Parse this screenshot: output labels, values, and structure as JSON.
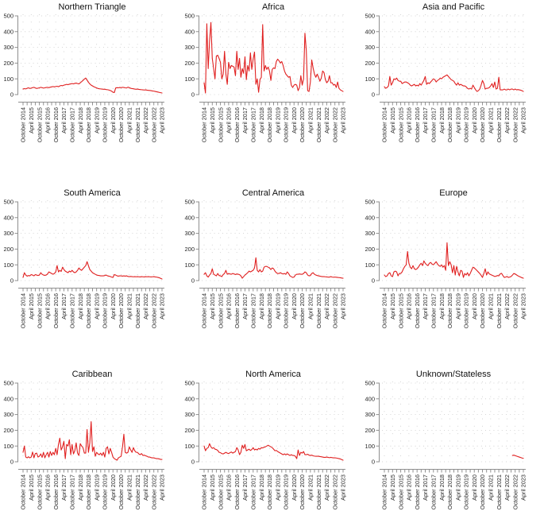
{
  "page": {
    "background": "#ffffff"
  },
  "chart_data": {
    "type": "line",
    "layout": "3x3 small multiples",
    "series_color": "#e02020",
    "axis_color": "#8f8f8f",
    "grid_color": "#c9c9c9",
    "label_color": "#262626",
    "title_color": "#111111",
    "grid": "dotted",
    "legend": "none",
    "x_frequency": "monthly",
    "x_start_label": "October 2014",
    "x_end_label": "April 2023",
    "x_months_total": 103,
    "ylim": [
      0,
      500
    ],
    "y_ticks": [
      0,
      100,
      200,
      300,
      400,
      500
    ],
    "x_tick_labels": [
      "October 2014",
      "April 2015",
      "October 2015",
      "April 2016",
      "October 2016",
      "April 2017",
      "October 2017",
      "April 2018",
      "October 2018",
      "April 2019",
      "October 2019",
      "April 2020",
      "October 2020",
      "April 2021",
      "October 2021",
      "April 2022",
      "October 2022",
      "April 2023"
    ],
    "panels": [
      {
        "title": "Northern Triangle",
        "values": [
          35,
          38,
          36,
          40,
          43,
          39,
          41,
          44,
          46,
          42,
          39,
          41,
          43,
          46,
          44,
          41,
          43,
          45,
          46,
          44,
          47,
          49,
          51,
          49,
          51,
          53,
          50,
          55,
          58,
          56,
          60,
          62,
          65,
          63,
          66,
          68,
          70,
          68,
          71,
          73,
          70,
          68,
          75,
          82,
          90,
          98,
          105,
          92,
          78,
          68,
          60,
          55,
          50,
          46,
          42,
          39,
          37,
          36,
          35,
          34,
          34,
          32,
          31,
          29,
          26,
          22,
          15,
          13,
          42,
          44,
          43,
          45,
          44,
          46,
          45,
          43,
          42,
          47,
          44,
          40,
          38,
          37,
          35,
          34,
          35,
          33,
          32,
          31,
          30,
          29,
          30,
          28,
          27,
          26,
          25,
          23,
          22,
          20,
          18,
          16,
          14,
          12,
          10
        ]
      },
      {
        "title": "Africa",
        "values": [
          75,
          10,
          450,
          165,
          340,
          458,
          230,
          165,
          100,
          245,
          250,
          230,
          205,
          100,
          130,
          275,
          130,
          65,
          205,
          165,
          185,
          180,
          175,
          120,
          275,
          160,
          230,
          110,
          165,
          135,
          240,
          95,
          185,
          150,
          265,
          160,
          225,
          270,
          65,
          100,
          15,
          95,
          110,
          445,
          150,
          185,
          160,
          175,
          150,
          90,
          160,
          170,
          165,
          210,
          225,
          215,
          200,
          210,
          185,
          150,
          130,
          120,
          110,
          115,
          60,
          45,
          60,
          65,
          60,
          25,
          45,
          120,
          60,
          100,
          390,
          280,
          25,
          20,
          80,
          220,
          170,
          130,
          110,
          130,
          110,
          85,
          105,
          150,
          140,
          95,
          75,
          85,
          120,
          75,
          75,
          60,
          65,
          45,
          80,
          40,
          30,
          25,
          20
        ]
      },
      {
        "title": "Asia and Pacific",
        "values": [
          50,
          40,
          45,
          55,
          115,
          60,
          75,
          100,
          95,
          105,
          90,
          85,
          85,
          70,
          75,
          80,
          80,
          75,
          70,
          60,
          55,
          60,
          65,
          55,
          60,
          55,
          70,
          60,
          75,
          90,
          115,
          65,
          75,
          70,
          80,
          90,
          100,
          95,
          80,
          90,
          95,
          105,
          100,
          110,
          115,
          120,
          125,
          115,
          105,
          95,
          90,
          85,
          70,
          60,
          75,
          60,
          65,
          60,
          55,
          55,
          50,
          40,
          35,
          40,
          35,
          60,
          45,
          30,
          20,
          25,
          35,
          60,
          90,
          70,
          35,
          40,
          40,
          45,
          55,
          70,
          45,
          80,
          35,
          40,
          110,
          30,
          30,
          30,
          35,
          30,
          30,
          35,
          30,
          35,
          35,
          30,
          35,
          30,
          32,
          30,
          28,
          25,
          20
        ]
      },
      {
        "title": "South America",
        "values": [
          20,
          50,
          35,
          28,
          32,
          30,
          38,
          35,
          30,
          38,
          35,
          32,
          35,
          50,
          40,
          35,
          33,
          35,
          42,
          55,
          50,
          45,
          40,
          45,
          55,
          95,
          55,
          65,
          58,
          85,
          70,
          60,
          55,
          50,
          60,
          55,
          65,
          55,
          50,
          55,
          65,
          80,
          70,
          65,
          75,
          85,
          95,
          120,
          95,
          70,
          60,
          50,
          45,
          40,
          35,
          33,
          32,
          30,
          30,
          30,
          32,
          35,
          30,
          28,
          26,
          22,
          20,
          38,
          35,
          30,
          28,
          30,
          30,
          28,
          30,
          28,
          30,
          26,
          25,
          26,
          25,
          24,
          25,
          24,
          25,
          24,
          23,
          25,
          24,
          23,
          25,
          24,
          25,
          24,
          23,
          24,
          25,
          23,
          22,
          20,
          18,
          14,
          10
        ]
      },
      {
        "title": "Central America",
        "values": [
          40,
          50,
          30,
          22,
          35,
          45,
          75,
          40,
          35,
          30,
          45,
          32,
          30,
          25,
          38,
          45,
          65,
          40,
          45,
          42,
          40,
          45,
          42,
          38,
          42,
          40,
          38,
          30,
          15,
          25,
          35,
          42,
          50,
          60,
          55,
          60,
          65,
          80,
          145,
          65,
          55,
          70,
          55,
          60,
          85,
          90,
          90,
          85,
          80,
          70,
          80,
          75,
          60,
          50,
          45,
          45,
          50,
          45,
          42,
          45,
          40,
          55,
          45,
          30,
          25,
          20,
          22,
          35,
          40,
          40,
          42,
          40,
          40,
          45,
          55,
          50,
          35,
          30,
          32,
          45,
          50,
          40,
          35,
          32,
          30,
          28,
          26,
          25,
          25,
          24,
          23,
          22,
          22,
          25,
          22,
          21,
          22,
          21,
          20,
          19,
          18,
          16,
          15
        ]
      },
      {
        "title": "Europe",
        "values": [
          35,
          25,
          30,
          45,
          50,
          30,
          25,
          55,
          60,
          55,
          30,
          45,
          45,
          55,
          75,
          90,
          100,
          185,
          110,
          85,
          75,
          95,
          75,
          70,
          75,
          85,
          100,
          110,
          95,
          125,
          110,
          100,
          95,
          110,
          115,
          105,
          100,
          110,
          120,
          105,
          95,
          90,
          100,
          85,
          95,
          65,
          240,
          95,
          120,
          100,
          50,
          95,
          35,
          90,
          55,
          30,
          65,
          60,
          20,
          45,
          35,
          50,
          30,
          45,
          65,
          85,
          80,
          72,
          63,
          54,
          45,
          33,
          20,
          45,
          75,
          35,
          55,
          42,
          38,
          34,
          30,
          26,
          28,
          32,
          30,
          42,
          46,
          32,
          20,
          22,
          26,
          20,
          22,
          26,
          35,
          45,
          42,
          36,
          30,
          26,
          22,
          18,
          15
        ]
      },
      {
        "title": "Caribbean",
        "values": [
          60,
          100,
          30,
          25,
          32,
          25,
          30,
          62,
          25,
          52,
          55,
          30,
          35,
          50,
          28,
          60,
          25,
          45,
          60,
          30,
          65,
          40,
          60,
          45,
          85,
          45,
          110,
          150,
          75,
          95,
          130,
          20,
          110,
          100,
          140,
          45,
          110,
          50,
          70,
          120,
          55,
          40,
          115,
          100,
          90,
          55,
          55,
          205,
          60,
          120,
          255,
          65,
          95,
          35,
          60,
          50,
          45,
          55,
          40,
          60,
          30,
          85,
          95,
          50,
          85,
          60,
          30,
          20,
          15,
          10,
          25,
          30,
          35,
          95,
          175,
          60,
          55,
          60,
          95,
          75,
          60,
          90,
          70,
          60,
          60,
          50,
          45,
          52,
          40,
          42,
          38,
          35,
          30,
          30,
          26,
          25,
          25,
          22,
          20,
          20,
          18,
          15,
          15
        ]
      },
      {
        "title": "North America",
        "values": [
          100,
          70,
          85,
          90,
          115,
          95,
          85,
          90,
          80,
          78,
          72,
          60,
          58,
          52,
          50,
          55,
          60,
          55,
          52,
          58,
          62,
          55,
          60,
          65,
          90,
          75,
          45,
          60,
          105,
          85,
          110,
          70,
          75,
          80,
          72,
          78,
          90,
          75,
          80,
          75,
          85,
          80,
          90,
          88,
          92,
          95,
          100,
          105,
          100,
          95,
          90,
          80,
          70,
          72,
          65,
          60,
          55,
          50,
          45,
          50,
          45,
          50,
          45,
          40,
          45,
          40,
          40,
          35,
          20,
          75,
          40,
          60,
          55,
          65,
          45,
          45,
          48,
          42,
          40,
          42,
          38,
          36,
          35,
          35,
          35,
          33,
          32,
          30,
          28,
          28,
          30,
          28,
          26,
          28,
          26,
          25,
          25,
          24,
          22,
          20,
          18,
          14,
          10
        ]
      },
      {
        "title": "Unknown/Stateless",
        "values": [
          null,
          null,
          null,
          null,
          null,
          null,
          null,
          null,
          null,
          null,
          null,
          null,
          null,
          null,
          null,
          null,
          null,
          null,
          null,
          null,
          null,
          null,
          null,
          null,
          null,
          null,
          null,
          null,
          null,
          null,
          null,
          null,
          null,
          null,
          null,
          null,
          null,
          null,
          null,
          null,
          null,
          null,
          null,
          null,
          null,
          null,
          null,
          null,
          null,
          null,
          null,
          null,
          null,
          null,
          null,
          null,
          null,
          null,
          null,
          null,
          null,
          null,
          null,
          null,
          null,
          null,
          null,
          null,
          null,
          null,
          null,
          null,
          null,
          null,
          null,
          null,
          null,
          null,
          null,
          null,
          null,
          null,
          null,
          null,
          null,
          null,
          null,
          null,
          null,
          null,
          null,
          null,
          null,
          null,
          40,
          42,
          39,
          36,
          33,
          30,
          27,
          24,
          22
        ]
      }
    ]
  }
}
